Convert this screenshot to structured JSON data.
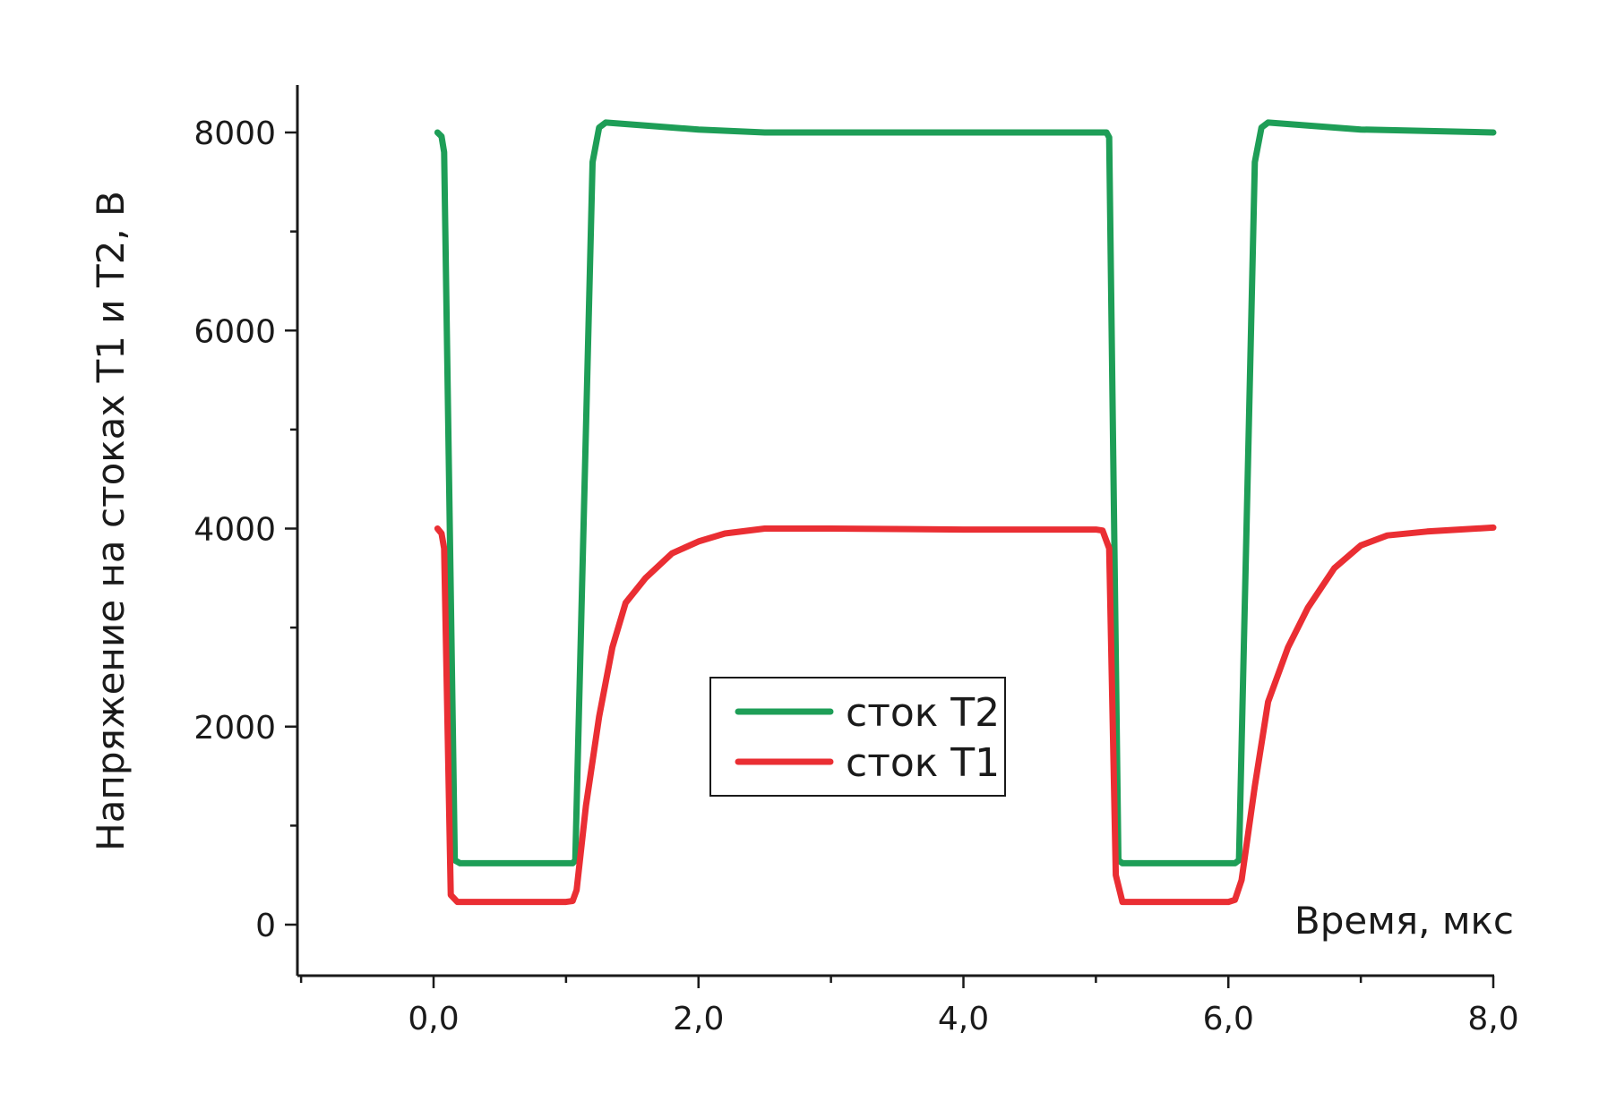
{
  "chart_data": {
    "type": "line",
    "title": "",
    "xlabel": "Время, мкс",
    "ylabel": "Напряжение на стоках Т1 и Т2, В",
    "xlim": [
      -1.0,
      8.0
    ],
    "ylim": [
      -500,
      8500
    ],
    "x_ticks": [
      0,
      2,
      4,
      6,
      8
    ],
    "x_tick_labels": [
      "0,0",
      "2,0",
      "4,0",
      "6,0",
      "8,0"
    ],
    "x_minor_ticks": [
      -1,
      1,
      3,
      5,
      7
    ],
    "y_ticks": [
      0,
      2000,
      4000,
      6000,
      8000
    ],
    "y_tick_labels": [
      "0",
      "2000",
      "4000",
      "6000",
      "8000"
    ],
    "y_minor_ticks": [
      1000,
      3000,
      5000,
      7000
    ],
    "grid": false,
    "legend_position": "center",
    "series": [
      {
        "name": "сток Т2",
        "color": "#1e9e57",
        "points": [
          [
            0.03,
            8000
          ],
          [
            0.06,
            7960
          ],
          [
            0.08,
            7800
          ],
          [
            0.16,
            650
          ],
          [
            0.2,
            620
          ],
          [
            1.05,
            620
          ],
          [
            1.07,
            650
          ],
          [
            1.2,
            7700
          ],
          [
            1.25,
            8050
          ],
          [
            1.3,
            8100
          ],
          [
            1.6,
            8070
          ],
          [
            2.0,
            8030
          ],
          [
            2.5,
            8000
          ],
          [
            3.0,
            8000
          ],
          [
            4.0,
            8000
          ],
          [
            5.0,
            8000
          ],
          [
            5.08,
            8000
          ],
          [
            5.1,
            7950
          ],
          [
            5.17,
            650
          ],
          [
            5.2,
            620
          ],
          [
            6.05,
            620
          ],
          [
            6.08,
            650
          ],
          [
            6.2,
            7700
          ],
          [
            6.25,
            8050
          ],
          [
            6.3,
            8100
          ],
          [
            6.6,
            8070
          ],
          [
            7.0,
            8030
          ],
          [
            8.0,
            8000
          ]
        ]
      },
      {
        "name": "сток Т1",
        "color": "#ea2e33",
        "points": [
          [
            0.03,
            4000
          ],
          [
            0.06,
            3950
          ],
          [
            0.08,
            3800
          ],
          [
            0.13,
            300
          ],
          [
            0.18,
            230
          ],
          [
            1.0,
            230
          ],
          [
            1.05,
            240
          ],
          [
            1.08,
            350
          ],
          [
            1.15,
            1200
          ],
          [
            1.25,
            2100
          ],
          [
            1.35,
            2800
          ],
          [
            1.45,
            3250
          ],
          [
            1.6,
            3500
          ],
          [
            1.8,
            3750
          ],
          [
            2.0,
            3870
          ],
          [
            2.2,
            3950
          ],
          [
            2.5,
            4000
          ],
          [
            3.0,
            4000
          ],
          [
            4.0,
            3990
          ],
          [
            5.0,
            3990
          ],
          [
            5.05,
            3980
          ],
          [
            5.1,
            3800
          ],
          [
            5.15,
            500
          ],
          [
            5.2,
            230
          ],
          [
            6.0,
            230
          ],
          [
            6.05,
            250
          ],
          [
            6.1,
            450
          ],
          [
            6.2,
            1400
          ],
          [
            6.3,
            2250
          ],
          [
            6.45,
            2800
          ],
          [
            6.6,
            3200
          ],
          [
            6.8,
            3600
          ],
          [
            7.0,
            3830
          ],
          [
            7.2,
            3930
          ],
          [
            7.5,
            3970
          ],
          [
            8.0,
            4010
          ]
        ]
      }
    ]
  }
}
